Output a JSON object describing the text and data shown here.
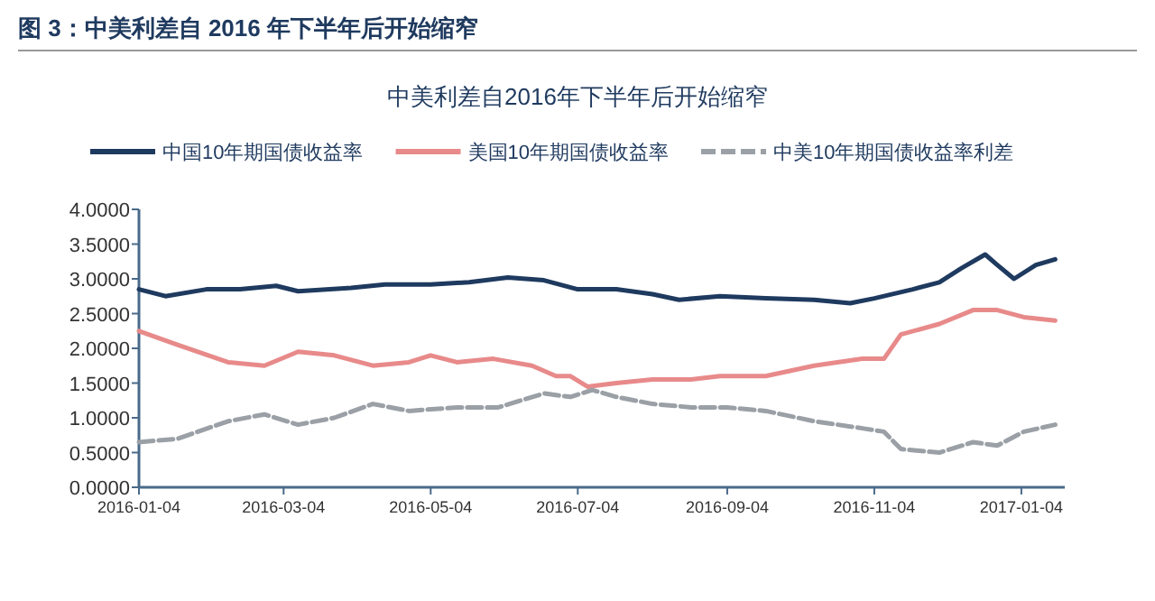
{
  "chart_data": {
    "type": "line",
    "title": "中美利差自2016年下半年后开始缩窄",
    "subtitle": "图 3：中美利差自 2016 年下半年后开始缩窄",
    "legend": "top",
    "grid": false,
    "xlim": [
      "2016-01-04",
      "2017-01-22"
    ],
    "xticks": [
      "2016-01-04",
      "2016-03-04",
      "2016-05-04",
      "2016-07-04",
      "2016-09-04",
      "2016-11-04",
      "2017-01-04"
    ],
    "ylim": [
      0,
      4
    ],
    "yticks": [
      {
        "value": 0,
        "label": "0.0000"
      },
      {
        "value": 0.5,
        "label": "0.5000"
      },
      {
        "value": 1,
        "label": "1.0000"
      },
      {
        "value": 1.5,
        "label": "1.5000"
      },
      {
        "value": 2,
        "label": "2.0000"
      },
      {
        "value": 2.5,
        "label": "2.5000"
      },
      {
        "value": 3,
        "label": "3.0000"
      },
      {
        "value": 3.5,
        "label": "3.5000"
      },
      {
        "value": 4,
        "label": "4.0000"
      }
    ],
    "series": [
      {
        "name": "中国10年期国债收益率",
        "color": "#1f3a5f",
        "line_style": "solid",
        "x": [
          "2016-01-04",
          "2016-01-15",
          "2016-02-01",
          "2016-02-15",
          "2016-03-01",
          "2016-03-10",
          "2016-04-01",
          "2016-04-15",
          "2016-05-04",
          "2016-05-20",
          "2016-06-05",
          "2016-06-20",
          "2016-07-04",
          "2016-07-20",
          "2016-08-04",
          "2016-08-15",
          "2016-09-01",
          "2016-09-20",
          "2016-10-10",
          "2016-10-25",
          "2016-11-04",
          "2016-11-20",
          "2016-12-01",
          "2016-12-10",
          "2016-12-20",
          "2016-12-25",
          "2017-01-01",
          "2017-01-10",
          "2017-01-18"
        ],
        "values": [
          2.85,
          2.75,
          2.85,
          2.85,
          2.9,
          2.82,
          2.87,
          2.92,
          2.92,
          2.95,
          3.02,
          2.98,
          2.85,
          2.85,
          2.78,
          2.7,
          2.75,
          2.72,
          2.7,
          2.65,
          2.72,
          2.85,
          2.95,
          3.15,
          3.35,
          3.2,
          3.0,
          3.2,
          3.28
        ]
      },
      {
        "name": "美国10年期国债收益率",
        "color": "#e88a8a",
        "line_style": "solid",
        "x": [
          "2016-01-04",
          "2016-01-20",
          "2016-02-10",
          "2016-02-25",
          "2016-03-10",
          "2016-03-25",
          "2016-04-10",
          "2016-04-25",
          "2016-05-04",
          "2016-05-15",
          "2016-05-30",
          "2016-06-15",
          "2016-06-25",
          "2016-07-01",
          "2016-07-08",
          "2016-07-20",
          "2016-08-04",
          "2016-08-20",
          "2016-09-01",
          "2016-09-20",
          "2016-10-10",
          "2016-10-30",
          "2016-11-08",
          "2016-11-15",
          "2016-12-01",
          "2016-12-15",
          "2016-12-25",
          "2017-01-05",
          "2017-01-18"
        ],
        "values": [
          2.25,
          2.05,
          1.8,
          1.75,
          1.95,
          1.9,
          1.75,
          1.8,
          1.9,
          1.8,
          1.85,
          1.75,
          1.6,
          1.6,
          1.45,
          1.5,
          1.55,
          1.55,
          1.6,
          1.6,
          1.75,
          1.85,
          1.85,
          2.2,
          2.35,
          2.55,
          2.55,
          2.45,
          2.4
        ]
      },
      {
        "name": "中美10年期国债收益率利差",
        "color": "#9aa0a6",
        "line_style": "dashed",
        "x": [
          "2016-01-04",
          "2016-01-20",
          "2016-02-10",
          "2016-02-25",
          "2016-03-10",
          "2016-03-25",
          "2016-04-10",
          "2016-04-25",
          "2016-05-15",
          "2016-06-01",
          "2016-06-20",
          "2016-07-01",
          "2016-07-10",
          "2016-07-20",
          "2016-08-04",
          "2016-08-20",
          "2016-09-04",
          "2016-09-20",
          "2016-10-10",
          "2016-10-30",
          "2016-11-08",
          "2016-11-15",
          "2016-12-01",
          "2016-12-15",
          "2016-12-25",
          "2017-01-05",
          "2017-01-18"
        ],
        "values": [
          0.65,
          0.7,
          0.95,
          1.05,
          0.9,
          1.0,
          1.2,
          1.1,
          1.15,
          1.15,
          1.35,
          1.3,
          1.4,
          1.3,
          1.2,
          1.15,
          1.15,
          1.1,
          0.95,
          0.85,
          0.8,
          0.55,
          0.5,
          0.65,
          0.6,
          0.8,
          0.9
        ]
      }
    ]
  }
}
